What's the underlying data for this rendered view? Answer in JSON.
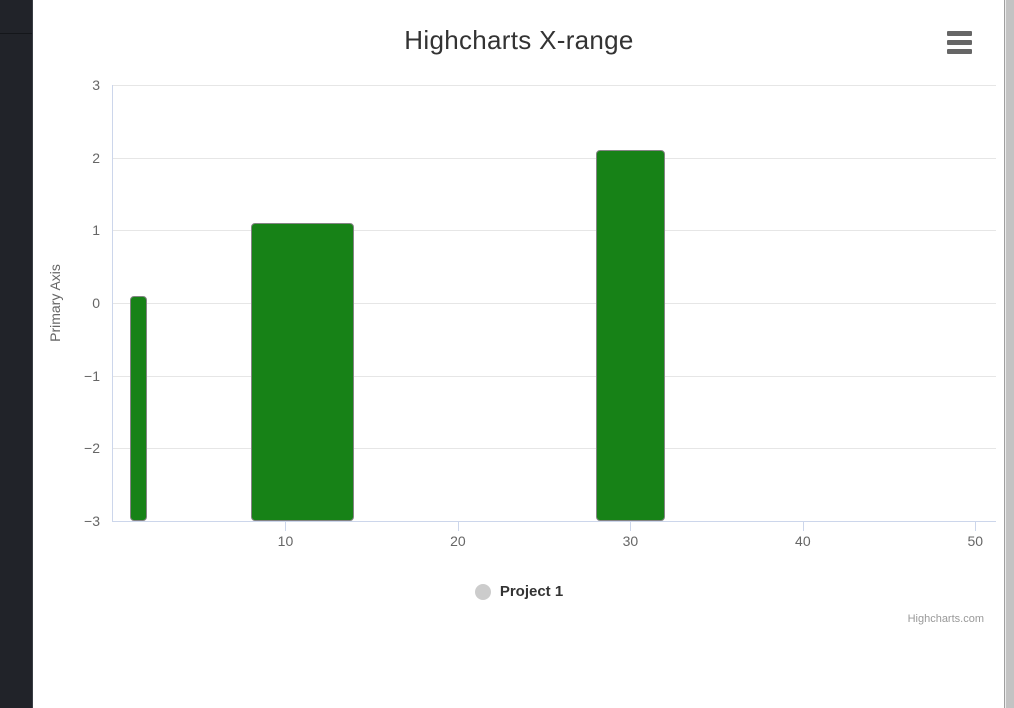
{
  "chart": {
    "credits": "Highcharts.com",
    "legend_marker_color": "#cccccc",
    "colors": {
      "title_text": "#333333",
      "axis_label_text": "#666666",
      "grid_line": "#e6e6e6",
      "axis_line": "#ccd6eb",
      "bar_fill": "#178217",
      "bar_border": "#848484",
      "legend_marker": "#cccccc",
      "credits_text": "#999999",
      "left_panel_bg": "#212329",
      "scrollbar_thumb": "#c3c3c3"
    }
  },
  "chart_data": {
    "type": "bar",
    "subtype": "x-range (horizontal-span columns rising from axis minimum)",
    "title": "Highcharts X-range",
    "xlabel": "",
    "ylabel": "Primary Axis",
    "xlim": [
      0,
      51.2
    ],
    "ylim": [
      -3,
      3
    ],
    "x_ticks": [
      10,
      20,
      30,
      40,
      50
    ],
    "y_ticks": [
      3,
      2,
      1,
      0,
      -1,
      -2,
      -3
    ],
    "grid": "horizontal gridlines only",
    "legend_position": "bottom-center",
    "series": [
      {
        "name": "Project 1",
        "color": "#178217",
        "base": -3,
        "points": [
          {
            "x": 1,
            "x2": 2,
            "y": 0.1
          },
          {
            "x": 8,
            "x2": 14,
            "y": 1.1
          },
          {
            "x": 28,
            "x2": 32,
            "y": 2.1
          }
        ]
      }
    ]
  }
}
